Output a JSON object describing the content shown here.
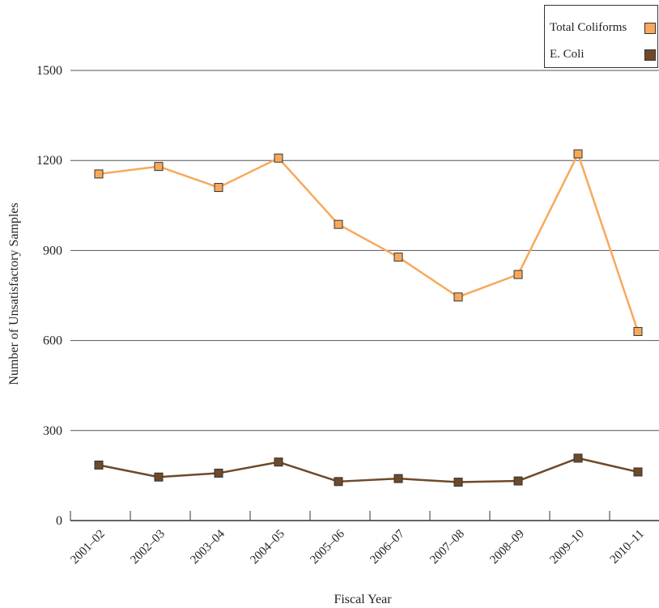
{
  "chart_data": {
    "type": "line",
    "categories": [
      "2001–02",
      "2002–03",
      "2003–04",
      "2004–05",
      "2005–06",
      "2006–07",
      "2007–08",
      "2008–09",
      "2009–10",
      "2010–11"
    ],
    "series": [
      {
        "name": "Total Coliforms",
        "color": "#F7A95B",
        "values": [
          1155,
          1180,
          1110,
          1208,
          987,
          878,
          745,
          820,
          1222,
          630
        ]
      },
      {
        "name": "E. Coli",
        "color": "#6E4A2B",
        "values": [
          185,
          145,
          158,
          195,
          130,
          140,
          128,
          132,
          208,
          162
        ]
      }
    ],
    "xlabel": "Fiscal Year",
    "ylabel": "Number of Unsatisfactory Samples",
    "ylim": [
      0,
      1500
    ],
    "yticks": [
      0,
      300,
      600,
      900,
      1200,
      1500
    ],
    "grid": true,
    "legend_position": "top-right"
  }
}
